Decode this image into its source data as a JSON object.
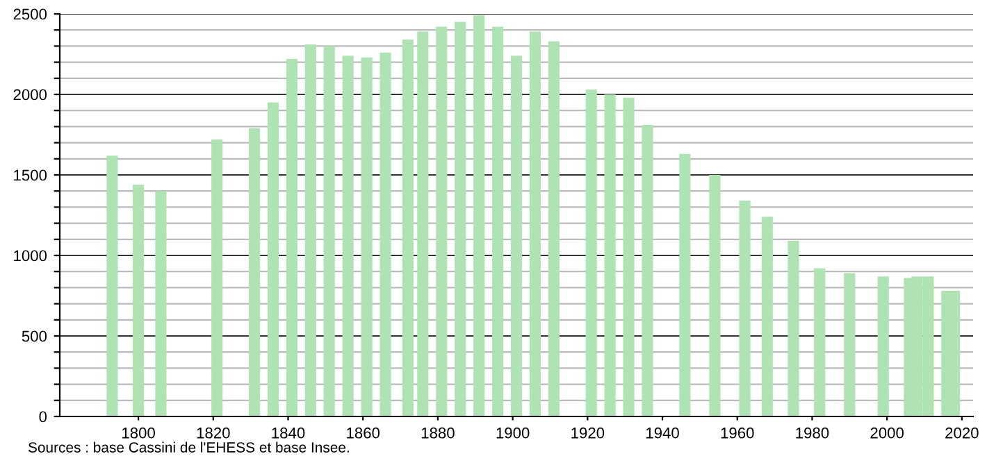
{
  "chart_data": {
    "type": "bar",
    "x": [
      1793,
      1800,
      1806,
      1821,
      1831,
      1836,
      1841,
      1846,
      1851,
      1856,
      1861,
      1866,
      1872,
      1876,
      1881,
      1886,
      1891,
      1896,
      1901,
      1906,
      1911,
      1921,
      1926,
      1931,
      1936,
      1946,
      1954,
      1962,
      1968,
      1975,
      1982,
      1990,
      1999,
      2006,
      2008,
      2011,
      2016,
      2018
    ],
    "values": [
      1620,
      1440,
      1400,
      1720,
      1790,
      1950,
      2220,
      2310,
      2300,
      2240,
      2230,
      2260,
      2340,
      2390,
      2420,
      2450,
      2490,
      2420,
      2240,
      2390,
      2330,
      2030,
      2000,
      1980,
      1810,
      1630,
      1500,
      1340,
      1240,
      1090,
      920,
      890,
      870,
      860,
      870,
      870,
      780,
      780
    ],
    "color": "#b0e3b4",
    "xlim": [
      1779,
      2023
    ],
    "xticks": [
      1800,
      1820,
      1840,
      1860,
      1880,
      1900,
      1920,
      1940,
      1960,
      1980,
      2000,
      2020
    ],
    "ylim": [
      0,
      2500
    ],
    "yticks": [
      0,
      {
        "value": 100,
        "label": null
      },
      {
        "value": 200,
        "label": null
      },
      {
        "value": 300,
        "label": null
      },
      {
        "value": 400,
        "label": null
      },
      500,
      {
        "value": 600,
        "label": null
      },
      {
        "value": 700,
        "label": null
      },
      {
        "value": 800,
        "label": null
      },
      {
        "value": 900,
        "label": null
      },
      1000,
      {
        "value": 1100,
        "label": null
      },
      {
        "value": 1200,
        "label": null
      },
      {
        "value": 1300,
        "label": null
      },
      {
        "value": 1400,
        "label": null
      },
      1500,
      {
        "value": 1600,
        "label": null
      },
      {
        "value": 1700,
        "label": null
      },
      {
        "value": 1800,
        "label": null
      },
      {
        "value": 1900,
        "label": null
      },
      2000,
      {
        "value": 2100,
        "label": null
      },
      {
        "value": 2200,
        "label": null
      },
      {
        "value": 2300,
        "label": null
      },
      {
        "value": 2400,
        "label": null
      },
      2500
    ],
    "grid": "y",
    "annotations": [
      "Sources : base Cassini de l'EHESS et base Insee."
    ]
  }
}
